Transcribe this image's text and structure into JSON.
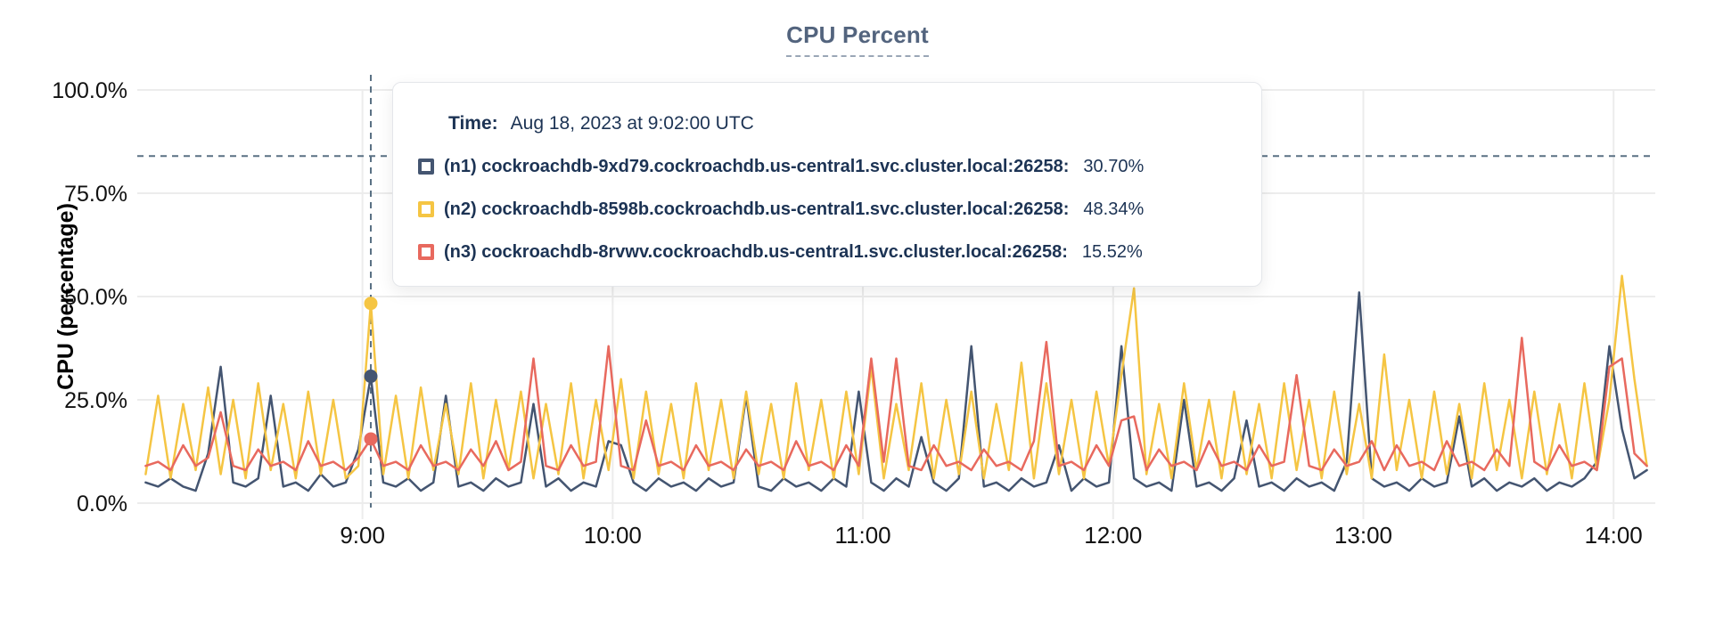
{
  "chart": {
    "title": "CPU Percent",
    "y_axis_label": "CPU (percentage)",
    "background": "#ffffff",
    "gridline_color": "#ececec",
    "crosshair_color": "#5a7184",
    "text_color": "#111111"
  },
  "tooltip": {
    "time_label": "Time:",
    "time_value": "Aug 18, 2023 at 9:02:00 UTC"
  },
  "chart_data": {
    "type": "line",
    "title": "CPU Percent",
    "xlabel": "",
    "ylabel": "CPU (percentage)",
    "ylim": [
      0,
      100
    ],
    "grid": true,
    "y_ticks": [
      [
        100,
        "100.0%"
      ],
      [
        75,
        "75.0%"
      ],
      [
        50,
        "50.0%"
      ],
      [
        25,
        "25.0%"
      ],
      [
        0,
        "0.0%"
      ]
    ],
    "x_ticks": [
      [
        540,
        "9:00"
      ],
      [
        600,
        "10:00"
      ],
      [
        660,
        "11:00"
      ],
      [
        720,
        "12:00"
      ],
      [
        780,
        "13:00"
      ],
      [
        840,
        "14:00"
      ]
    ],
    "x_domain_minutes": [
      486,
      850
    ],
    "x_start_minute": 488,
    "x_step_minutes": 3,
    "hover": {
      "minute": 542,
      "time_text": "Aug 18, 2023 at 9:02:00 UTC",
      "crosshair_y_percent": 84,
      "values": [
        30.7,
        48.34,
        15.52
      ]
    },
    "series": [
      {
        "name": "n1",
        "label": "(n1) cockroachdb-9xd79.cockroachdb.us-central1.svc.cluster.local:26258:",
        "value_text": "30.70%",
        "color": "#445571",
        "values": [
          5,
          4,
          6,
          4,
          3,
          12,
          33,
          5,
          4,
          6,
          26,
          4,
          5,
          3,
          7,
          4,
          5,
          13,
          30.7,
          5,
          4,
          6,
          3,
          5,
          26,
          4,
          5,
          3,
          6,
          4,
          5,
          24,
          4,
          6,
          3,
          5,
          4,
          15,
          14,
          5,
          3,
          6,
          4,
          5,
          3,
          6,
          4,
          5,
          26,
          4,
          3,
          6,
          4,
          5,
          3,
          6,
          4,
          27,
          5,
          3,
          6,
          4,
          16,
          5,
          3,
          6,
          38,
          4,
          5,
          3,
          6,
          4,
          5,
          14,
          3,
          6,
          4,
          5,
          38,
          6,
          4,
          5,
          3,
          25,
          4,
          5,
          3,
          6,
          20,
          4,
          5,
          3,
          6,
          4,
          5,
          3,
          10,
          51,
          6,
          4,
          5,
          3,
          6,
          4,
          5,
          21,
          4,
          6,
          3,
          5,
          4,
          6,
          3,
          5,
          4,
          6,
          10,
          38,
          18,
          6,
          8
        ]
      },
      {
        "name": "n2",
        "label": "(n2) cockroachdb-8598b.cockroachdb.us-central1.svc.cluster.local:26258:",
        "value_text": "48.34%",
        "color": "#F5C543",
        "values": [
          7,
          26,
          6,
          24,
          8,
          28,
          7,
          25,
          6,
          29,
          8,
          24,
          6,
          27,
          7,
          25,
          6,
          9,
          48.34,
          7,
          26,
          6,
          28,
          8,
          24,
          7,
          29,
          6,
          25,
          8,
          27,
          6,
          24,
          7,
          29,
          6,
          25,
          8,
          30,
          6,
          27,
          7,
          24,
          6,
          29,
          8,
          25,
          6,
          27,
          7,
          24,
          6,
          29,
          8,
          25,
          6,
          27,
          7,
          33,
          6,
          24,
          8,
          29,
          6,
          25,
          7,
          27,
          6,
          24,
          8,
          34,
          6,
          29,
          7,
          25,
          6,
          27,
          9,
          31,
          52,
          7,
          24,
          6,
          29,
          8,
          25,
          6,
          27,
          7,
          24,
          6,
          29,
          8,
          25,
          6,
          27,
          7,
          24,
          6,
          36,
          8,
          25,
          6,
          27,
          7,
          24,
          6,
          29,
          8,
          25,
          6,
          27,
          7,
          24,
          6,
          29,
          8,
          25,
          55,
          30,
          9
        ]
      },
      {
        "name": "n3",
        "label": "(n3) cockroachdb-8rvwv.cockroachdb.us-central1.svc.cluster.local:26258:",
        "value_text": "15.52%",
        "color": "#E8695E",
        "values": [
          9,
          10,
          8,
          14,
          9,
          11,
          22,
          9,
          8,
          13,
          9,
          10,
          8,
          15,
          9,
          10,
          8,
          11,
          15.52,
          9,
          10,
          8,
          14,
          9,
          10,
          8,
          13,
          9,
          15,
          8,
          10,
          35,
          9,
          8,
          14,
          9,
          10,
          38,
          9,
          8,
          20,
          9,
          10,
          8,
          14,
          9,
          10,
          8,
          13,
          9,
          10,
          8,
          15,
          9,
          10,
          8,
          14,
          9,
          35,
          10,
          35,
          9,
          8,
          14,
          9,
          10,
          8,
          13,
          9,
          10,
          8,
          15,
          39,
          9,
          10,
          8,
          14,
          9,
          20,
          21,
          8,
          13,
          9,
          10,
          8,
          15,
          9,
          10,
          8,
          14,
          9,
          10,
          31,
          9,
          8,
          13,
          9,
          10,
          15,
          8,
          14,
          9,
          10,
          8,
          15,
          9,
          10,
          8,
          13,
          9,
          40,
          10,
          8,
          14,
          9,
          10,
          8,
          33,
          35,
          12,
          9
        ]
      }
    ]
  }
}
